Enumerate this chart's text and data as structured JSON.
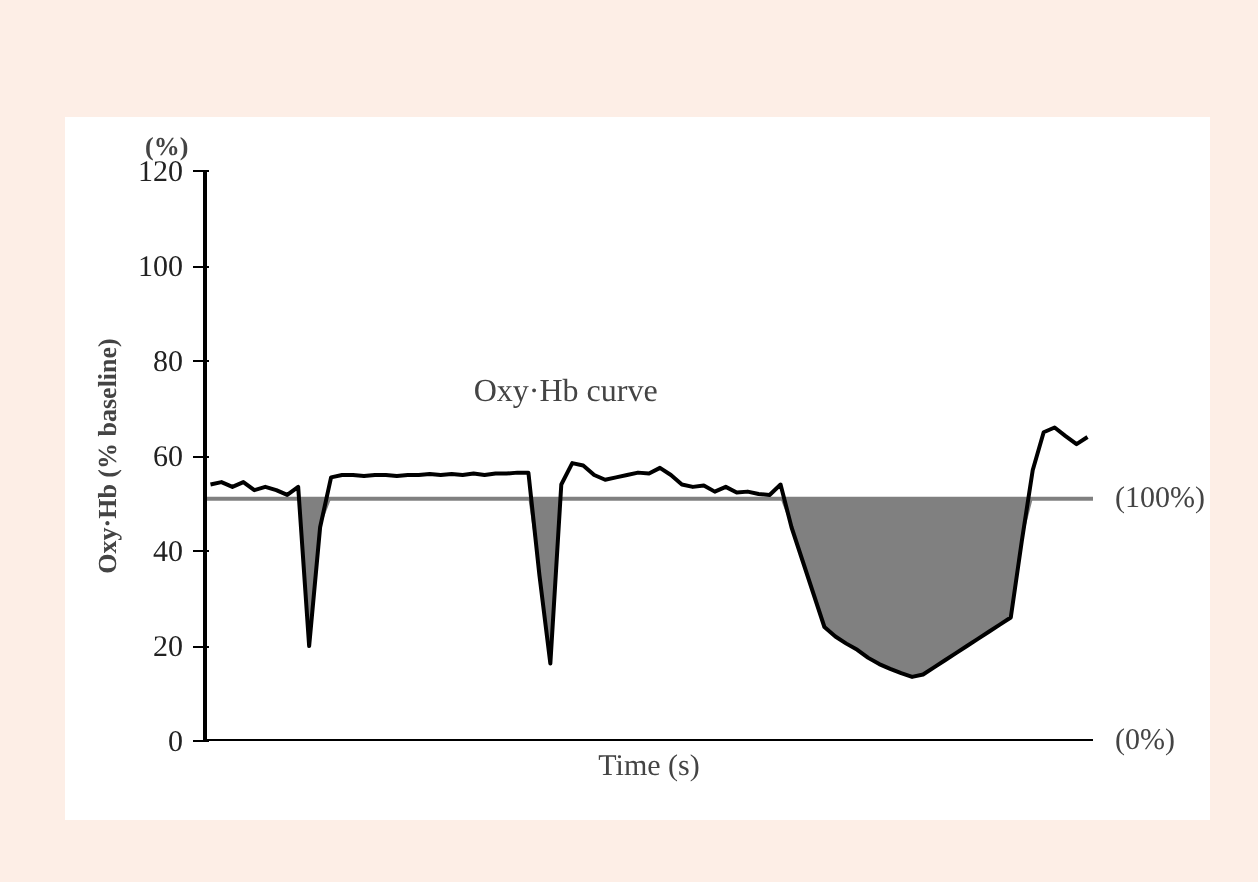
{
  "chart_data": {
    "type": "line",
    "xlabel": "Time (s)",
    "ylabel": "Oxy·Hb (% baseline)",
    "categories": [
      null,
      null,
      null,
      null,
      null,
      null,
      null,
      null,
      null,
      null,
      null,
      null,
      null,
      null,
      null,
      null,
      null,
      null,
      null,
      null,
      null,
      null,
      null,
      null,
      null,
      null,
      null,
      null,
      null,
      null,
      null,
      null,
      null,
      null,
      null,
      null,
      null,
      null,
      null,
      null,
      null,
      null,
      null,
      null,
      null,
      null,
      null,
      null,
      null,
      null,
      null,
      null,
      null,
      null,
      null,
      null,
      null,
      null,
      null,
      null,
      null,
      null,
      null,
      null,
      null,
      null,
      null,
      null,
      null,
      null,
      null,
      null,
      null,
      null,
      null,
      null,
      null,
      null,
      null,
      null,
      null
    ],
    "series": [
      {
        "name": "Oxy·Hb curve",
        "color": "#000000",
        "values": [
          54,
          54.5,
          53.5,
          54.5,
          52.8,
          53.5,
          52.8,
          51.8,
          53.5,
          20,
          45,
          55.5,
          56,
          56,
          55.8,
          56,
          56,
          55.8,
          56,
          56,
          56.2,
          56,
          56.2,
          56,
          56.3,
          56,
          56.3,
          56.3,
          56.5,
          56.5,
          35,
          16.3,
          54,
          58.5,
          58,
          56,
          55,
          55.5,
          56,
          56.5,
          56.3,
          57.5,
          56,
          54,
          53.5,
          53.8,
          52.5,
          53.5,
          52.3,
          52.5,
          52,
          51.8,
          54,
          45,
          38,
          31,
          24,
          22,
          20.5,
          19.2,
          17.5,
          16.2,
          15.2,
          14.3,
          13.5,
          14,
          15.5,
          17,
          18.5,
          20,
          21.5,
          23,
          24.5,
          26,
          42,
          57,
          65,
          66,
          64.2,
          62.5,
          64
        ],
        "lower": [
          51,
          51,
          51,
          51,
          51,
          51,
          51,
          51,
          51,
          20,
          45,
          51,
          51,
          51,
          51,
          51,
          51,
          51,
          51,
          51,
          51,
          51,
          51,
          51,
          51,
          51,
          51,
          51,
          51,
          51,
          35,
          16.3,
          51,
          51,
          51,
          51,
          51,
          51,
          51,
          51,
          51,
          51,
          51,
          51,
          51,
          51,
          51,
          51,
          51,
          51,
          51,
          51,
          51,
          45,
          38,
          31,
          24,
          22,
          20.5,
          19.2,
          17.5,
          16.2,
          15.2,
          14.3,
          13.5,
          14,
          15.5,
          17,
          18.5,
          20,
          21.5,
          23,
          24.5,
          26,
          42,
          51,
          51,
          51,
          51,
          51,
          51
        ],
        "upper": [
          51,
          51,
          51,
          51,
          51,
          51,
          51,
          51,
          51,
          51,
          51,
          51,
          51,
          51,
          51,
          51,
          51,
          51,
          51,
          51,
          51,
          51,
          51,
          51,
          51,
          51,
          51,
          51,
          51,
          51,
          51,
          51,
          51,
          51,
          51,
          51,
          51,
          51,
          51,
          51,
          51,
          51,
          51,
          51,
          51,
          51,
          51,
          51,
          51,
          51,
          51,
          51,
          51,
          51,
          51,
          51,
          51,
          51,
          51,
          51,
          51,
          51,
          51,
          51,
          51,
          51,
          51,
          51,
          51,
          51,
          51,
          51,
          51,
          51,
          51,
          51,
          51,
          51,
          51,
          51,
          51
        ]
      }
    ],
    "ylim": [
      0,
      120
    ],
    "yticks": [
      0,
      20,
      40,
      60,
      80,
      100,
      120
    ],
    "tick_labels": "y",
    "grid": false,
    "legend": false,
    "ref_lines": [
      {
        "axis": "y",
        "value": 51,
        "color": "#808080"
      },
      {
        "axis": "y",
        "value": 0,
        "color": "#000000"
      }
    ],
    "annotations": [
      "(%)",
      "(100%)",
      "(0%)"
    ]
  }
}
